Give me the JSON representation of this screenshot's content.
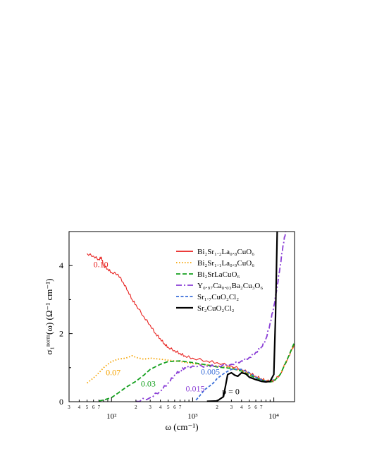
{
  "chart_data": {
    "type": "line",
    "xscale": "log",
    "xlim": [
      30,
      18000
    ],
    "ylim": [
      0,
      5
    ],
    "ylabel": "σ₁ⁿᵒʳᵐ(ω) (Ω⁻¹ cm⁻¹)",
    "xlabel": "ω (cm⁻¹)",
    "y_ticks": [
      "0",
      "2",
      "4"
    ],
    "x_ticks_major": [
      "10²",
      "10³",
      "10⁴"
    ],
    "x_ticks_minor": [
      "3",
      "4",
      "5",
      "6",
      "7",
      "2",
      "3",
      "4",
      "5",
      "6",
      "7",
      "2",
      "3",
      "4",
      "5",
      "6",
      "7"
    ],
    "legend_position": "top-right",
    "series": [
      {
        "name": "Bi₂Sr₁.₂La₀.₈CuO₆",
        "doping_label": "0.10",
        "color": "#e8201e",
        "dash": "solid",
        "points": [
          [
            50,
            4.35
          ],
          [
            60,
            4.28
          ],
          [
            70,
            4.18
          ],
          [
            75,
            4.25
          ],
          [
            80,
            4.0
          ],
          [
            90,
            3.9
          ],
          [
            100,
            3.8
          ],
          [
            120,
            3.75
          ],
          [
            140,
            3.5
          ],
          [
            160,
            3.25
          ],
          [
            180,
            3.0
          ],
          [
            200,
            2.85
          ],
          [
            250,
            2.5
          ],
          [
            300,
            2.25
          ],
          [
            350,
            2.0
          ],
          [
            400,
            1.85
          ],
          [
            450,
            1.7
          ],
          [
            500,
            1.6
          ],
          [
            600,
            1.5
          ],
          [
            700,
            1.42
          ],
          [
            800,
            1.35
          ],
          [
            1000,
            1.28
          ],
          [
            1500,
            1.2
          ],
          [
            2000,
            1.15
          ],
          [
            3000,
            1.05
          ],
          [
            4000,
            0.95
          ],
          [
            5000,
            0.85
          ],
          [
            6000,
            0.75
          ],
          [
            7000,
            0.68
          ],
          [
            8000,
            0.62
          ],
          [
            9000,
            0.6
          ],
          [
            10000,
            0.62
          ],
          [
            12000,
            0.8
          ],
          [
            15000,
            1.3
          ],
          [
            18000,
            1.7
          ]
        ]
      },
      {
        "name": "Bi₂Sr₁.₁La₀.₉CuO₆",
        "doping_label": "0.07",
        "color": "#f5a300",
        "dash": "dotted",
        "points": [
          [
            50,
            0.55
          ],
          [
            60,
            0.7
          ],
          [
            70,
            0.85
          ],
          [
            80,
            1.0
          ],
          [
            90,
            1.1
          ],
          [
            100,
            1.18
          ],
          [
            120,
            1.25
          ],
          [
            150,
            1.28
          ],
          [
            180,
            1.35
          ],
          [
            200,
            1.3
          ],
          [
            250,
            1.25
          ],
          [
            300,
            1.28
          ],
          [
            400,
            1.25
          ],
          [
            500,
            1.22
          ],
          [
            700,
            1.18
          ],
          [
            1000,
            1.12
          ],
          [
            1500,
            1.08
          ],
          [
            2000,
            1.05
          ],
          [
            3000,
            1.0
          ],
          [
            4000,
            0.9
          ],
          [
            5000,
            0.8
          ],
          [
            6000,
            0.72
          ],
          [
            7000,
            0.66
          ],
          [
            8000,
            0.62
          ],
          [
            9000,
            0.6
          ],
          [
            10000,
            0.62
          ],
          [
            12000,
            0.8
          ],
          [
            15000,
            1.3
          ],
          [
            18000,
            1.7
          ]
        ]
      },
      {
        "name": "Bi₂SrLaCuO₆",
        "doping_label": "0.03",
        "color": "#14a01e",
        "dash": "dashed",
        "points": [
          [
            70,
            0.02
          ],
          [
            80,
            0.05
          ],
          [
            100,
            0.12
          ],
          [
            120,
            0.25
          ],
          [
            150,
            0.42
          ],
          [
            200,
            0.6
          ],
          [
            250,
            0.78
          ],
          [
            300,
            0.95
          ],
          [
            400,
            1.1
          ],
          [
            500,
            1.18
          ],
          [
            700,
            1.2
          ],
          [
            1000,
            1.15
          ],
          [
            1500,
            1.08
          ],
          [
            2000,
            1.02
          ],
          [
            3000,
            0.98
          ],
          [
            4000,
            0.9
          ],
          [
            5000,
            0.78
          ],
          [
            6000,
            0.7
          ],
          [
            7000,
            0.64
          ],
          [
            8000,
            0.6
          ],
          [
            9000,
            0.58
          ],
          [
            10000,
            0.6
          ],
          [
            12000,
            0.8
          ],
          [
            15000,
            1.3
          ],
          [
            18000,
            1.75
          ]
        ]
      },
      {
        "name": "Y₀.₉₇Ca₀.₀₃Ba₂Cu₃O₆",
        "doping_label": "0.015",
        "color": "#8a3fd6",
        "dash": "dashdot",
        "points": [
          [
            200,
            0.01
          ],
          [
            300,
            0.12
          ],
          [
            400,
            0.32
          ],
          [
            500,
            0.55
          ],
          [
            600,
            0.78
          ],
          [
            700,
            0.92
          ],
          [
            800,
            1.0
          ],
          [
            1000,
            1.05
          ],
          [
            1500,
            1.05
          ],
          [
            2000,
            1.05
          ],
          [
            3000,
            1.1
          ],
          [
            4000,
            1.2
          ],
          [
            5000,
            1.3
          ],
          [
            6000,
            1.45
          ],
          [
            7000,
            1.6
          ],
          [
            8000,
            1.85
          ],
          [
            9000,
            2.3
          ],
          [
            10000,
            2.8
          ],
          [
            11000,
            3.4
          ],
          [
            12000,
            4.0
          ],
          [
            13000,
            4.6
          ],
          [
            14000,
            5.0
          ]
        ]
      },
      {
        "name": "Sr₁.₇CuO₂Cl₂",
        "doping_label": "0.005",
        "color": "#3b6fd9",
        "dash": "dashed-short",
        "points": [
          [
            1100,
            0.05
          ],
          [
            1200,
            0.15
          ],
          [
            1400,
            0.35
          ],
          [
            1600,
            0.45
          ],
          [
            1800,
            0.55
          ],
          [
            2000,
            0.68
          ],
          [
            2500,
            0.85
          ],
          [
            3000,
            0.95
          ],
          [
            4000,
            0.95
          ],
          [
            5000,
            0.85
          ],
          [
            6000,
            0.72
          ],
          [
            7000,
            0.65
          ],
          [
            8000,
            0.6
          ],
          [
            9000,
            0.6
          ],
          [
            10000,
            0.65
          ]
        ]
      },
      {
        "name": "Sr₂CuO₂Cl₂",
        "doping_label": "p = 0",
        "color": "#000000",
        "dash": "solid",
        "points": [
          [
            1500,
            0.01
          ],
          [
            2000,
            0.02
          ],
          [
            2400,
            0.15
          ],
          [
            2700,
            0.8
          ],
          [
            3000,
            0.85
          ],
          [
            3300,
            0.78
          ],
          [
            3600,
            0.75
          ],
          [
            4000,
            0.85
          ],
          [
            4500,
            0.82
          ],
          [
            5000,
            0.72
          ],
          [
            6000,
            0.65
          ],
          [
            7000,
            0.6
          ],
          [
            8000,
            0.58
          ],
          [
            9000,
            0.6
          ],
          [
            10000,
            0.8
          ],
          [
            10500,
            2.5
          ],
          [
            11000,
            5.0
          ]
        ]
      }
    ]
  }
}
